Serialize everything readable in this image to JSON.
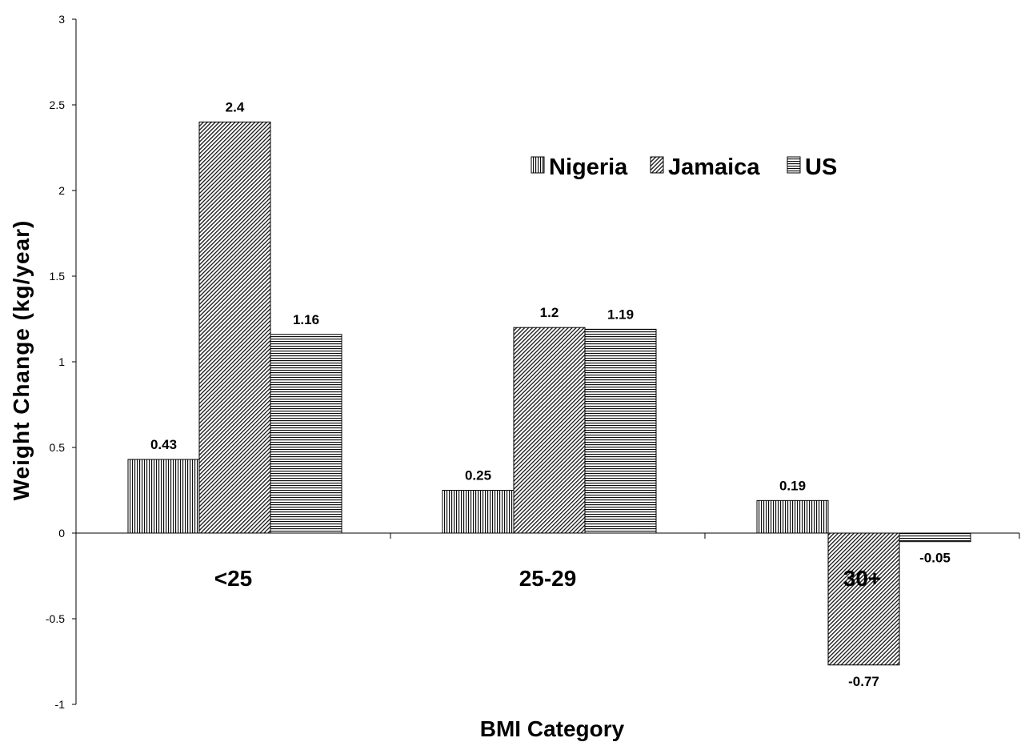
{
  "chart_data": {
    "type": "bar",
    "title": "",
    "xlabel": "BMI Category",
    "ylabel": "Weight Change (kg/year)",
    "categories": [
      "<25",
      "25-29",
      "30+"
    ],
    "series": [
      {
        "name": "Nigeria",
        "values": [
          0.43,
          0.25,
          0.19
        ],
        "labels": [
          "0.43",
          "0.25",
          "0.19"
        ],
        "pattern": "vertical-lines"
      },
      {
        "name": "Jamaica",
        "values": [
          2.4,
          1.2,
          -0.77
        ],
        "labels": [
          "2.4",
          "1.2",
          "-0.77"
        ],
        "pattern": "diagonal-lines"
      },
      {
        "name": "US",
        "values": [
          1.16,
          1.19,
          -0.05
        ],
        "labels": [
          "1.16",
          "1.19",
          "-0.05"
        ],
        "pattern": "horizontal-lines"
      }
    ],
    "yticks": [
      -1,
      -0.5,
      0,
      0.5,
      1,
      1.5,
      2,
      2.5,
      3
    ],
    "ytick_labels": [
      "-1",
      "-0.5",
      "0",
      "0.5",
      "1",
      "1.5",
      "2",
      "2.5",
      "3"
    ],
    "ylim": [
      -1,
      3
    ],
    "grid": false,
    "legend_position": "top-right"
  }
}
